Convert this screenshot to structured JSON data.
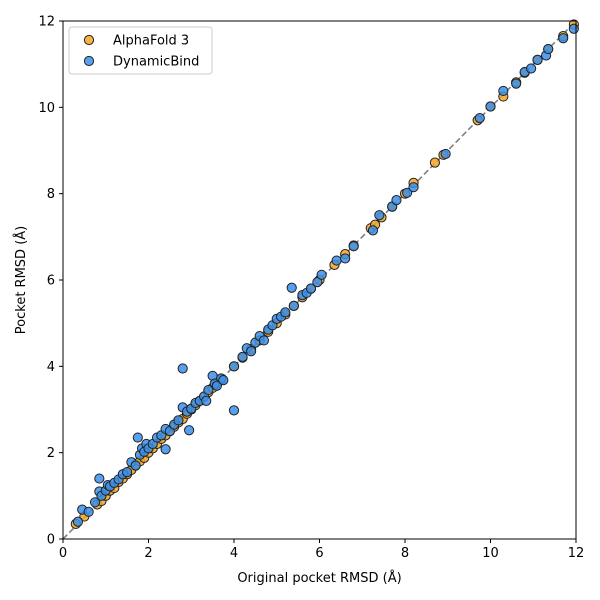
{
  "chart_data": {
    "type": "scatter",
    "title": "",
    "xlabel": "Original pocket RMSD (Å)",
    "ylabel": "Pocket RMSD (Å)",
    "xlim": [
      0,
      12
    ],
    "ylim": [
      0,
      12
    ],
    "xticks": [
      "0",
      "2",
      "4",
      "6",
      "8",
      "10",
      "12"
    ],
    "yticks": [
      "0",
      "2",
      "4",
      "6",
      "8",
      "10",
      "12"
    ],
    "grid": false,
    "legend_position": "upper-left",
    "reference_line": "y = x (dashed gray)",
    "series": [
      {
        "name": "AlphaFold 3",
        "color": "#f5a623",
        "points": [
          [
            0.3,
            0.35
          ],
          [
            0.5,
            0.52
          ],
          [
            0.8,
            0.8
          ],
          [
            0.9,
            0.88
          ],
          [
            1.0,
            1.0
          ],
          [
            1.1,
            1.12
          ],
          [
            1.2,
            1.18
          ],
          [
            1.3,
            1.32
          ],
          [
            1.4,
            1.4
          ],
          [
            1.5,
            1.5
          ],
          [
            1.6,
            1.6
          ],
          [
            1.7,
            1.72
          ],
          [
            1.8,
            1.8
          ],
          [
            1.9,
            1.88
          ],
          [
            2.0,
            2.0
          ],
          [
            2.1,
            2.1
          ],
          [
            2.2,
            2.2
          ],
          [
            2.3,
            2.32
          ],
          [
            2.4,
            2.4
          ],
          [
            2.5,
            2.5
          ],
          [
            2.6,
            2.6
          ],
          [
            2.7,
            2.7
          ],
          [
            2.8,
            2.78
          ],
          [
            2.9,
            2.9
          ],
          [
            3.0,
            3.0
          ],
          [
            3.1,
            3.1
          ],
          [
            3.2,
            3.2
          ],
          [
            3.3,
            3.3
          ],
          [
            3.4,
            3.4
          ],
          [
            3.5,
            3.5
          ],
          [
            3.6,
            3.6
          ],
          [
            3.7,
            3.7
          ],
          [
            4.0,
            4.0
          ],
          [
            4.2,
            4.2
          ],
          [
            4.4,
            4.4
          ],
          [
            4.6,
            4.6
          ],
          [
            4.8,
            4.8
          ],
          [
            5.0,
            5.0
          ],
          [
            5.2,
            5.2
          ],
          [
            5.4,
            5.4
          ],
          [
            5.6,
            5.6
          ],
          [
            5.8,
            5.8
          ],
          [
            6.0,
            6.0
          ],
          [
            6.35,
            6.35
          ],
          [
            6.6,
            6.6
          ],
          [
            6.8,
            6.8
          ],
          [
            7.2,
            7.2
          ],
          [
            7.3,
            7.28
          ],
          [
            7.45,
            7.45
          ],
          [
            7.7,
            7.7
          ],
          [
            8.0,
            8.0
          ],
          [
            8.2,
            8.25
          ],
          [
            8.7,
            8.72
          ],
          [
            8.9,
            8.9
          ],
          [
            9.7,
            9.7
          ],
          [
            10.0,
            10.02
          ],
          [
            10.3,
            10.25
          ],
          [
            10.6,
            10.58
          ],
          [
            10.8,
            10.8
          ],
          [
            11.1,
            11.1
          ],
          [
            11.35,
            11.35
          ],
          [
            11.7,
            11.65
          ],
          [
            11.95,
            11.92
          ]
        ]
      },
      {
        "name": "DynamicBind",
        "color": "#3b8fea",
        "points": [
          [
            0.35,
            0.4
          ],
          [
            0.45,
            0.68
          ],
          [
            0.6,
            0.63
          ],
          [
            0.75,
            0.85
          ],
          [
            0.85,
            1.4
          ],
          [
            0.85,
            1.1
          ],
          [
            0.9,
            1.0
          ],
          [
            1.0,
            1.12
          ],
          [
            1.05,
            1.25
          ],
          [
            1.1,
            1.22
          ],
          [
            1.2,
            1.3
          ],
          [
            1.3,
            1.38
          ],
          [
            1.4,
            1.5
          ],
          [
            1.5,
            1.55
          ],
          [
            1.6,
            1.78
          ],
          [
            1.7,
            1.7
          ],
          [
            1.75,
            2.35
          ],
          [
            1.8,
            1.95
          ],
          [
            1.85,
            2.1
          ],
          [
            1.9,
            2.02
          ],
          [
            1.95,
            2.2
          ],
          [
            2.0,
            2.1
          ],
          [
            2.1,
            2.2
          ],
          [
            2.2,
            2.35
          ],
          [
            2.3,
            2.4
          ],
          [
            2.4,
            2.08
          ],
          [
            2.4,
            2.55
          ],
          [
            2.5,
            2.5
          ],
          [
            2.6,
            2.65
          ],
          [
            2.7,
            2.75
          ],
          [
            2.8,
            3.95
          ],
          [
            2.8,
            3.05
          ],
          [
            2.9,
            2.95
          ],
          [
            2.95,
            2.52
          ],
          [
            3.0,
            3.02
          ],
          [
            3.1,
            3.15
          ],
          [
            3.2,
            3.2
          ],
          [
            3.3,
            3.3
          ],
          [
            3.35,
            3.2
          ],
          [
            3.4,
            3.45
          ],
          [
            3.5,
            3.78
          ],
          [
            3.55,
            3.6
          ],
          [
            3.6,
            3.55
          ],
          [
            3.7,
            3.72
          ],
          [
            3.75,
            3.68
          ],
          [
            4.0,
            2.98
          ],
          [
            4.0,
            4.0
          ],
          [
            4.2,
            4.22
          ],
          [
            4.3,
            4.42
          ],
          [
            4.4,
            4.35
          ],
          [
            4.5,
            4.55
          ],
          [
            4.6,
            4.7
          ],
          [
            4.7,
            4.6
          ],
          [
            4.8,
            4.85
          ],
          [
            4.9,
            4.95
          ],
          [
            5.0,
            5.1
          ],
          [
            5.1,
            5.15
          ],
          [
            5.2,
            5.25
          ],
          [
            5.35,
            5.82
          ],
          [
            5.4,
            5.4
          ],
          [
            5.6,
            5.65
          ],
          [
            5.7,
            5.7
          ],
          [
            5.8,
            5.8
          ],
          [
            5.95,
            5.95
          ],
          [
            6.05,
            6.12
          ],
          [
            6.4,
            6.45
          ],
          [
            6.6,
            6.5
          ],
          [
            6.8,
            6.78
          ],
          [
            7.25,
            7.15
          ],
          [
            7.4,
            7.5
          ],
          [
            7.7,
            7.7
          ],
          [
            7.8,
            7.85
          ],
          [
            8.05,
            8.02
          ],
          [
            8.2,
            8.15
          ],
          [
            8.95,
            8.92
          ],
          [
            9.75,
            9.75
          ],
          [
            10.0,
            10.02
          ],
          [
            10.3,
            10.38
          ],
          [
            10.6,
            10.55
          ],
          [
            10.8,
            10.82
          ],
          [
            10.95,
            10.9
          ],
          [
            11.1,
            11.1
          ],
          [
            11.3,
            11.2
          ],
          [
            11.35,
            11.35
          ],
          [
            11.7,
            11.6
          ],
          [
            11.95,
            11.82
          ]
        ]
      }
    ]
  }
}
